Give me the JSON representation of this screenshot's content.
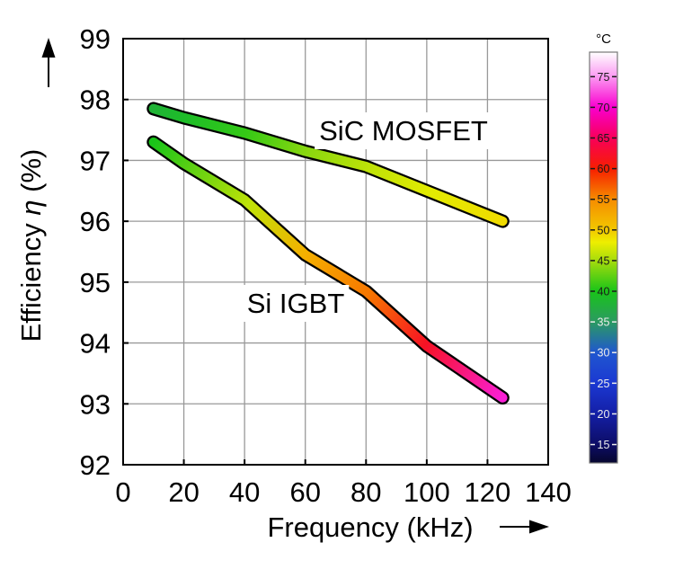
{
  "chart_data": {
    "type": "line",
    "title": "",
    "xlabel": "Frequency (kHz)",
    "ylabel": "Efficiency η (%)",
    "ylabel_parts": [
      {
        "text": "Efficiency ",
        "italic": false
      },
      {
        "text": "η",
        "italic": true
      },
      {
        "text": " (%)",
        "italic": false
      }
    ],
    "xlim": [
      0,
      140
    ],
    "ylim": [
      92,
      99
    ],
    "x_ticks": [
      0,
      20,
      40,
      60,
      80,
      100,
      120,
      140
    ],
    "y_ticks": [
      92,
      93,
      94,
      95,
      96,
      97,
      98,
      99
    ],
    "grid": true,
    "grid_color": "#999999",
    "axis_color": "#000000",
    "series": [
      {
        "name": "SiC MOSFET",
        "x": [
          10,
          20,
          40,
          60,
          80,
          100,
          125
        ],
        "efficiency_pct": [
          97.85,
          97.7,
          97.45,
          97.15,
          96.9,
          96.5,
          96.0
        ],
        "temperature_c": [
          38,
          39,
          41,
          44,
          46,
          47.5,
          49
        ]
      },
      {
        "name": "Si IGBT",
        "x": [
          10,
          20,
          40,
          60,
          80,
          100,
          125
        ],
        "efficiency_pct": [
          97.3,
          96.95,
          96.35,
          95.45,
          94.85,
          93.95,
          93.1
        ],
        "temperature_c": [
          40,
          42,
          46,
          52,
          56,
          62,
          71
        ]
      }
    ],
    "colorbar": {
      "title": "°C",
      "min": 12,
      "max": 79,
      "ticks": [
        15,
        20,
        25,
        30,
        35,
        40,
        45,
        50,
        55,
        60,
        65,
        70,
        75
      ],
      "colormap": [
        {
          "t": 12,
          "c": "#06062e"
        },
        {
          "t": 15,
          "c": "#0d0d66"
        },
        {
          "t": 20,
          "c": "#141fa6"
        },
        {
          "t": 25,
          "c": "#1b38d2"
        },
        {
          "t": 30,
          "c": "#2057cf"
        },
        {
          "t": 35,
          "c": "#2b9a62"
        },
        {
          "t": 40,
          "c": "#19c419"
        },
        {
          "t": 45,
          "c": "#a6dc0c"
        },
        {
          "t": 48,
          "c": "#eeee00"
        },
        {
          "t": 50,
          "c": "#f2c800"
        },
        {
          "t": 55,
          "c": "#f68c00"
        },
        {
          "t": 60,
          "c": "#f71e00"
        },
        {
          "t": 65,
          "c": "#f8005a"
        },
        {
          "t": 70,
          "c": "#f900cf"
        },
        {
          "t": 75,
          "c": "#fb9af2"
        },
        {
          "t": 79,
          "c": "#ffffff"
        }
      ],
      "dark_label_color": "#1a1a1a",
      "light_label_color": "#ececec"
    }
  }
}
